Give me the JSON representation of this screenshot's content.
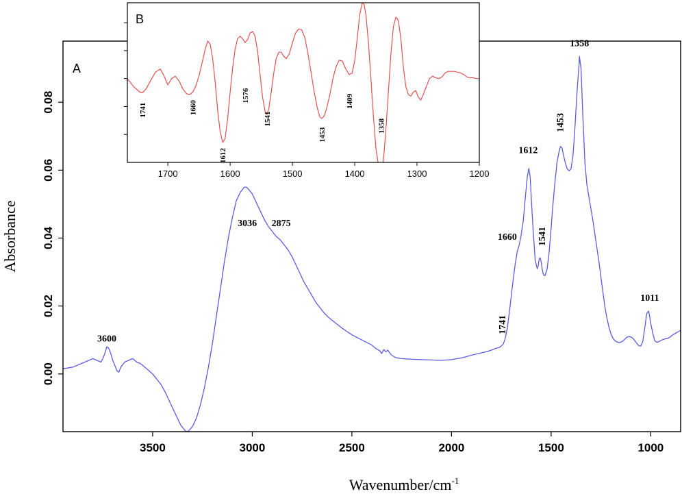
{
  "chart_data": [
    {
      "panel": "A",
      "type": "line",
      "xlabel": "Wavenumber/cm",
      "xlabel_sup": "-1",
      "ylabel": "Absorbance",
      "xlim": [
        3950,
        850
      ],
      "ylim": [
        -0.017,
        0.098
      ],
      "x_ticks": [
        3500,
        3000,
        2500,
        2000,
        1500,
        1000
      ],
      "x_tick_labels": [
        "3500",
        "3000",
        "2500",
        "2000",
        "1500",
        "1000"
      ],
      "y_ticks": [
        0.0,
        0.02,
        0.04,
        0.06,
        0.08
      ],
      "y_tick_labels": [
        "0.00",
        "0.02",
        "0.04",
        "0.06",
        "0.08"
      ],
      "line_color": "#5a5ae6",
      "peak_labels": [
        {
          "text": "3600",
          "x": 3730,
          "y": 0.0095,
          "rotate": false
        },
        {
          "text": "3036",
          "x": 3025,
          "y": 0.0435,
          "rotate": false
        },
        {
          "text": "2875",
          "x": 2855,
          "y": 0.0435,
          "rotate": false
        },
        {
          "text": "1741",
          "x": 1730,
          "y": 0.0145,
          "rotate": true
        },
        {
          "text": "1660",
          "x": 1720,
          "y": 0.0395,
          "rotate": false
        },
        {
          "text": "1612",
          "x": 1615,
          "y": 0.065,
          "rotate": false
        },
        {
          "text": "1541",
          "x": 1530,
          "y": 0.0405,
          "rotate": true
        },
        {
          "text": "1453",
          "x": 1440,
          "y": 0.074,
          "rotate": true
        },
        {
          "text": "1358",
          "x": 1358,
          "y": 0.0965,
          "rotate": false
        },
        {
          "text": "1011",
          "x": 1005,
          "y": 0.0215,
          "rotate": false
        }
      ],
      "series": [
        {
          "x": [
            3950,
            3900,
            3860,
            3840,
            3820,
            3800,
            3780,
            3760,
            3750,
            3740,
            3730,
            3720,
            3710,
            3700,
            3690,
            3680,
            3670,
            3660,
            3640,
            3620,
            3600,
            3580,
            3560,
            3540,
            3520,
            3500,
            3480,
            3460,
            3440,
            3420,
            3400,
            3380,
            3360,
            3340,
            3330,
            3320,
            3300,
            3280,
            3260,
            3240,
            3220,
            3200,
            3180,
            3160,
            3140,
            3120,
            3100,
            3080,
            3060,
            3040,
            3030,
            3020,
            3000,
            2980,
            2960,
            2940,
            2920,
            2900,
            2880,
            2860,
            2840,
            2820,
            2800,
            2780,
            2760,
            2740,
            2720,
            2700,
            2680,
            2660,
            2640,
            2620,
            2600,
            2550,
            2500,
            2450,
            2400,
            2380,
            2360,
            2350,
            2340,
            2330,
            2320,
            2310,
            2300,
            2280,
            2250,
            2200,
            2150,
            2100,
            2050,
            2000,
            1950,
            1900,
            1850,
            1820,
            1800,
            1780,
            1760,
            1750,
            1740,
            1730,
            1720,
            1710,
            1700,
            1690,
            1680,
            1670,
            1660,
            1650,
            1640,
            1630,
            1620,
            1612,
            1605,
            1600,
            1590,
            1580,
            1570,
            1565,
            1560,
            1555,
            1550,
            1545,
            1540,
            1535,
            1530,
            1520,
            1510,
            1500,
            1490,
            1480,
            1470,
            1460,
            1453,
            1445,
            1440,
            1430,
            1420,
            1410,
            1400,
            1390,
            1380,
            1370,
            1360,
            1358,
            1350,
            1340,
            1330,
            1320,
            1310,
            1300,
            1290,
            1280,
            1270,
            1260,
            1250,
            1240,
            1230,
            1220,
            1210,
            1200,
            1190,
            1180,
            1170,
            1160,
            1150,
            1140,
            1130,
            1120,
            1110,
            1100,
            1090,
            1080,
            1070,
            1060,
            1050,
            1040,
            1030,
            1020,
            1011,
            1005,
            1000,
            990,
            980,
            970,
            960,
            950,
            940,
            930,
            920,
            910,
            900,
            890,
            880,
            870,
            860,
            850
          ],
          "y": [
            0.0015,
            0.002,
            0.003,
            0.0035,
            0.004,
            0.0045,
            0.004,
            0.0035,
            0.0045,
            0.006,
            0.008,
            0.0075,
            0.006,
            0.004,
            0.0025,
            0.001,
            0.0005,
            0.002,
            0.0035,
            0.004,
            0.0045,
            0.0035,
            0.003,
            0.002,
            0.001,
            0.0,
            -0.0015,
            -0.003,
            -0.005,
            -0.0075,
            -0.01,
            -0.0125,
            -0.015,
            -0.0165,
            -0.017,
            -0.0168,
            -0.0155,
            -0.013,
            -0.009,
            -0.004,
            0.002,
            0.009,
            0.017,
            0.025,
            0.033,
            0.04,
            0.046,
            0.051,
            0.0535,
            0.055,
            0.055,
            0.0545,
            0.053,
            0.0505,
            0.048,
            0.0455,
            0.0435,
            0.042,
            0.0405,
            0.0395,
            0.038,
            0.0365,
            0.0345,
            0.032,
            0.0295,
            0.027,
            0.025,
            0.023,
            0.021,
            0.0195,
            0.018,
            0.0168,
            0.0158,
            0.0135,
            0.0115,
            0.01,
            0.0085,
            0.0075,
            0.0068,
            0.006,
            0.0072,
            0.0065,
            0.007,
            0.0062,
            0.0055,
            0.0048,
            0.0045,
            0.0043,
            0.0042,
            0.0041,
            0.004,
            0.0042,
            0.0047,
            0.0055,
            0.0062,
            0.0066,
            0.007,
            0.0075,
            0.0078,
            0.0082,
            0.0088,
            0.0105,
            0.0135,
            0.018,
            0.023,
            0.028,
            0.0325,
            0.036,
            0.038,
            0.041,
            0.045,
            0.0515,
            0.058,
            0.0605,
            0.058,
            0.052,
            0.042,
            0.0335,
            0.031,
            0.0318,
            0.0338,
            0.0342,
            0.033,
            0.031,
            0.0295,
            0.029,
            0.029,
            0.031,
            0.036,
            0.043,
            0.0505,
            0.057,
            0.0625,
            0.0655,
            0.067,
            0.0665,
            0.065,
            0.0625,
            0.0605,
            0.0598,
            0.0605,
            0.0645,
            0.073,
            0.083,
            0.091,
            0.0935,
            0.09,
            0.075,
            0.062,
            0.0555,
            0.052,
            0.0485,
            0.045,
            0.041,
            0.037,
            0.033,
            0.0285,
            0.024,
            0.0198,
            0.0165,
            0.0138,
            0.0118,
            0.0105,
            0.0098,
            0.0094,
            0.0092,
            0.0093,
            0.0097,
            0.0102,
            0.0108,
            0.011,
            0.0109,
            0.0105,
            0.0098,
            0.009,
            0.0083,
            0.0082,
            0.0095,
            0.0135,
            0.0178,
            0.0185,
            0.0168,
            0.0148,
            0.012,
            0.0098,
            0.0093,
            0.0095,
            0.0098,
            0.0101,
            0.0103,
            0.0104,
            0.0106,
            0.011,
            0.0115,
            0.0118,
            0.0122,
            0.0125,
            0.0128
          ]
        }
      ]
    },
    {
      "panel": "B",
      "type": "line",
      "xlim": [
        1765,
        1200
      ],
      "ylim": [
        -1.0,
        1.0
      ],
      "x_ticks": [
        1700,
        1600,
        1500,
        1400,
        1300,
        1200
      ],
      "x_tick_labels": [
        "1700",
        "1600",
        "1500",
        "1400",
        "1300",
        "1200"
      ],
      "y_ticks": [
        0.75,
        0.4,
        0.05,
        -0.3,
        -0.65
      ],
      "line_color": "#e65050",
      "peak_labels": [
        {
          "text": "1741",
          "x": 1741,
          "y": -0.25
        },
        {
          "text": "1660",
          "x": 1660,
          "y": -0.22
        },
        {
          "text": "1576",
          "x": 1576,
          "y": -0.07
        },
        {
          "text": "1612",
          "x": 1612,
          "y": -0.82
        },
        {
          "text": "1541",
          "x": 1541,
          "y": -0.36
        },
        {
          "text": "1453",
          "x": 1453,
          "y": -0.56
        },
        {
          "text": "1409",
          "x": 1409,
          "y": -0.14
        },
        {
          "text": "1358",
          "x": 1358,
          "y": -0.45
        }
      ],
      "series": [
        {
          "x": [
            1765,
            1755,
            1745,
            1741,
            1735,
            1728,
            1720,
            1712,
            1706,
            1700,
            1694,
            1688,
            1682,
            1676,
            1670,
            1665,
            1660,
            1655,
            1650,
            1645,
            1640,
            1636,
            1632,
            1628,
            1624,
            1620,
            1616,
            1612,
            1608,
            1604,
            1600,
            1596,
            1592,
            1588,
            1584,
            1580,
            1576,
            1572,
            1568,
            1564,
            1560,
            1556,
            1552,
            1548,
            1544,
            1541,
            1538,
            1534,
            1530,
            1526,
            1522,
            1518,
            1514,
            1510,
            1505,
            1500,
            1495,
            1490,
            1485,
            1480,
            1475,
            1470,
            1465,
            1460,
            1456,
            1453,
            1449,
            1445,
            1440,
            1435,
            1430,
            1425,
            1420,
            1415,
            1409,
            1404,
            1400,
            1396,
            1392,
            1388,
            1385,
            1382,
            1378,
            1374,
            1370,
            1366,
            1362,
            1358,
            1354,
            1350,
            1346,
            1342,
            1338,
            1334,
            1330,
            1326,
            1322,
            1318,
            1314,
            1310,
            1306,
            1302,
            1298,
            1294,
            1290,
            1285,
            1280,
            1275,
            1270,
            1265,
            1260,
            1255,
            1250,
            1245,
            1240,
            1235,
            1230,
            1225,
            1220,
            1215,
            1210,
            1205,
            1200
          ],
          "y": [
            0.05,
            -0.05,
            -0.12,
            -0.13,
            -0.08,
            0.02,
            0.13,
            0.17,
            0.08,
            -0.03,
            0.05,
            0.08,
            0.02,
            -0.08,
            -0.14,
            -0.15,
            -0.12,
            -0.04,
            0.08,
            0.25,
            0.42,
            0.52,
            0.48,
            0.3,
            0.0,
            -0.35,
            -0.62,
            -0.75,
            -0.7,
            -0.45,
            -0.12,
            0.18,
            0.42,
            0.55,
            0.58,
            0.55,
            0.5,
            0.54,
            0.62,
            0.64,
            0.58,
            0.4,
            0.1,
            -0.18,
            -0.36,
            -0.4,
            -0.33,
            -0.12,
            0.12,
            0.3,
            0.38,
            0.38,
            0.33,
            0.3,
            0.36,
            0.5,
            0.62,
            0.67,
            0.66,
            0.56,
            0.36,
            0.12,
            -0.12,
            -0.32,
            -0.43,
            -0.45,
            -0.42,
            -0.32,
            -0.15,
            0.05,
            0.2,
            0.28,
            0.27,
            0.18,
            0.1,
            0.12,
            0.28,
            0.55,
            0.85,
            1.0,
            0.98,
            0.85,
            0.5,
            0.05,
            -0.42,
            -0.82,
            -1.03,
            -1.08,
            -0.98,
            -0.6,
            -0.12,
            0.35,
            0.7,
            0.82,
            0.78,
            0.55,
            0.2,
            -0.05,
            -0.15,
            -0.17,
            -0.12,
            -0.1,
            -0.18,
            -0.22,
            -0.15,
            -0.05,
            0.05,
            0.08,
            0.06,
            0.05,
            0.07,
            0.12,
            0.14,
            0.14,
            0.14,
            0.13,
            0.12,
            0.1,
            0.07,
            0.06,
            0.06,
            0.05,
            0.05
          ]
        }
      ]
    }
  ]
}
